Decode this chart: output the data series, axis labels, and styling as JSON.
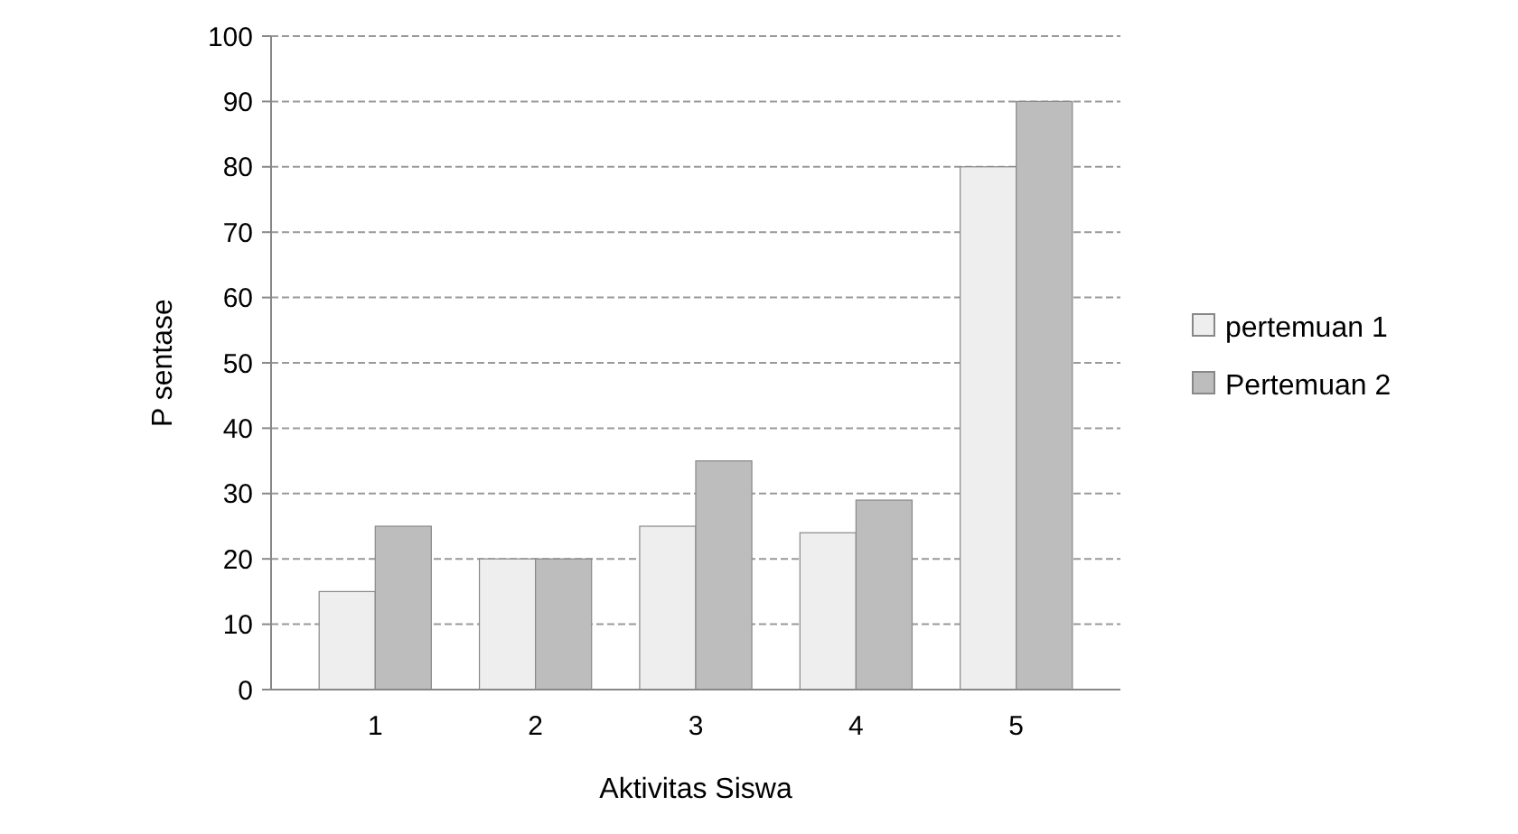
{
  "chart_data": {
    "type": "bar",
    "xlabel": "Aktivitas Siswa",
    "ylabel": "P  sentase",
    "categories": [
      "1",
      "2",
      "3",
      "4",
      "5"
    ],
    "series": [
      {
        "name": "pertemuan 1",
        "color": "#eeeeee",
        "values": [
          15,
          20,
          25,
          24,
          80
        ]
      },
      {
        "name": "Pertemuan 2",
        "color": "#bdbdbd",
        "values": [
          25,
          20,
          35,
          29,
          90
        ]
      }
    ],
    "ylim": [
      0,
      100
    ],
    "yticks": [
      0,
      10,
      20,
      30,
      40,
      50,
      60,
      70,
      80,
      90,
      100
    ],
    "grid": "y",
    "legend": "right"
  }
}
